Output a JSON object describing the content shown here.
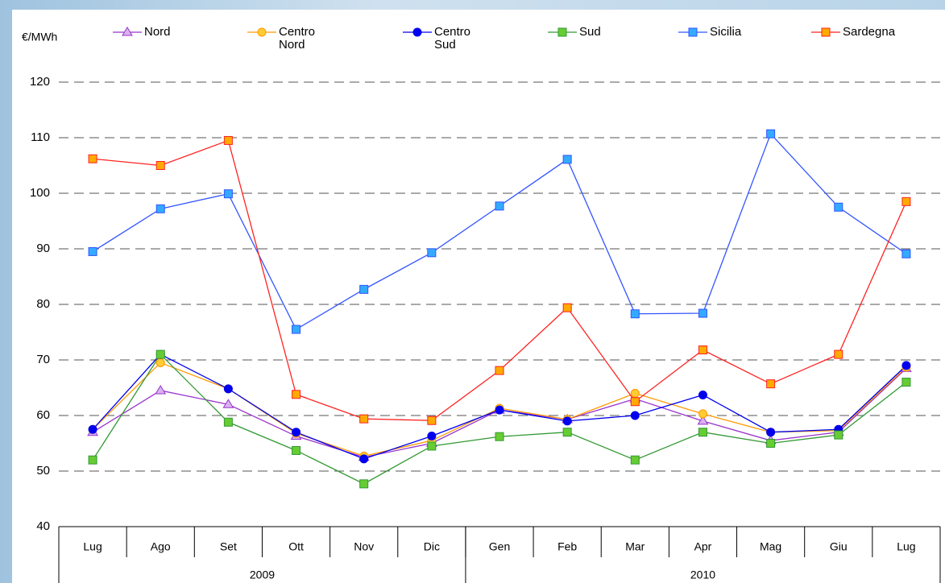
{
  "chart_data": {
    "type": "line",
    "y_unit": "€/MWh",
    "categories": [
      "Lug",
      "Ago",
      "Set",
      "Ott",
      "Nov",
      "Dic",
      "Gen",
      "Feb",
      "Mar",
      "Apr",
      "Mag",
      "Giu",
      "Lug"
    ],
    "groups": [
      {
        "label": "2009",
        "span": 6
      },
      {
        "label": "2010",
        "span": 7
      }
    ],
    "ylim": [
      40,
      120
    ],
    "yticks": [
      40,
      50,
      60,
      70,
      80,
      90,
      100,
      110,
      120
    ],
    "grid": true,
    "legend": "top",
    "series": [
      {
        "name": "Nord",
        "color": "#9933cc",
        "marker": "triangle",
        "marker_fill": "#d9b3f0",
        "values": [
          57,
          64.5,
          62,
          56.3,
          52.5,
          55,
          61,
          59.3,
          63,
          59,
          55.5,
          57,
          68.5
        ]
      },
      {
        "name": "Centro Nord",
        "color": "#ff9900",
        "marker": "circle",
        "marker_fill": "#ffcc33",
        "values": [
          57.5,
          69.5,
          64.8,
          56.8,
          52.7,
          55.5,
          61.3,
          59.3,
          64,
          60.3,
          57,
          57.3,
          68.7
        ]
      },
      {
        "name": "Centro Sud",
        "color": "#0000ee",
        "marker": "circle",
        "marker_fill": "#0000ee",
        "values": [
          57.5,
          71,
          64.8,
          57,
          52.2,
          56.3,
          61,
          59,
          60,
          63.7,
          57,
          57.5,
          69
        ]
      },
      {
        "name": "Sud",
        "color": "#339933",
        "marker": "square",
        "marker_fill": "#66cc33",
        "values": [
          52,
          71,
          58.8,
          53.7,
          47.7,
          54.5,
          56.2,
          57,
          52,
          57,
          55,
          56.5,
          66
        ]
      },
      {
        "name": "Sicilia",
        "color": "#3355ff",
        "marker": "square",
        "marker_fill": "#33aaff",
        "values": [
          89.5,
          97.2,
          99.9,
          75.5,
          82.7,
          89.3,
          97.7,
          106.1,
          78.3,
          78.4,
          110.7,
          97.5,
          89.1
        ]
      },
      {
        "name": "Sardegna",
        "color": "#ff2222",
        "marker": "square",
        "marker_fill": "#ffaa00",
        "values": [
          106.2,
          105,
          109.5,
          63.8,
          59.4,
          59.1,
          68.1,
          79.4,
          62.5,
          71.8,
          65.7,
          71,
          98.5
        ]
      }
    ]
  }
}
